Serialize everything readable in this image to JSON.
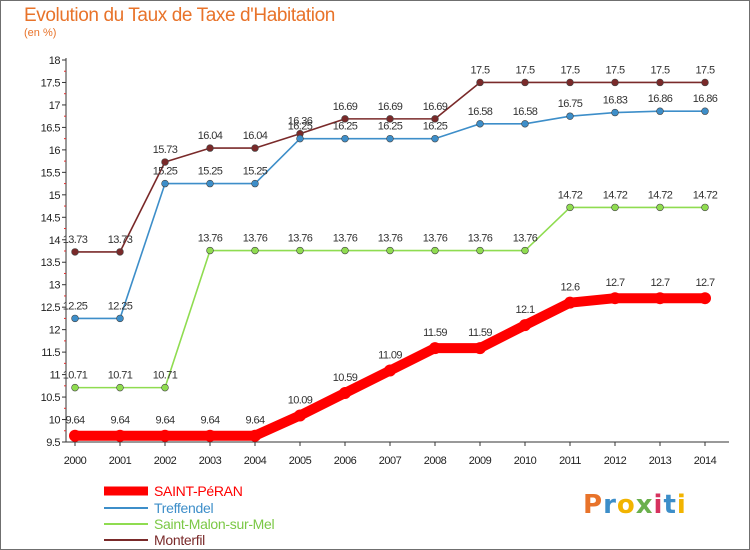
{
  "header": {
    "title": "Evolution du Taux de Taxe d'Habitation",
    "unit": "(en %)"
  },
  "logo": {
    "text": "Proxiti",
    "colors": [
      "#e8732a",
      "#3d8ec9",
      "#f2b400",
      "#6ab04c",
      "#d6325e",
      "#3d8ec9",
      "#f2b400"
    ]
  },
  "chart_data": {
    "type": "line",
    "title": "Evolution du Taux de Taxe d'Habitation",
    "subtitle": "(en %)",
    "xlabel": "",
    "ylabel": "",
    "categories": [
      "2000",
      "2001",
      "2002",
      "2003",
      "2004",
      "2005",
      "2006",
      "2007",
      "2008",
      "2009",
      "2010",
      "2011",
      "2012",
      "2013",
      "2014"
    ],
    "ylim": [
      9.5,
      18
    ],
    "yticks": [
      "9.5",
      "10",
      "10.5",
      "11",
      "11.5",
      "12",
      "12.5",
      "13",
      "13.5",
      "14",
      "14.5",
      "15",
      "15.5",
      "16",
      "16.5",
      "17",
      "17.5",
      "18"
    ],
    "grid": false,
    "legend": "bottom-left",
    "series": [
      {
        "name": "SAINT-PéRAN",
        "color": "#ff0000",
        "values": [
          9.64,
          9.64,
          9.64,
          9.64,
          9.64,
          10.09,
          10.59,
          11.09,
          11.59,
          11.59,
          12.1,
          12.6,
          12.7,
          12.7,
          12.7
        ],
        "labels": [
          "9.64",
          "9.64",
          "9.64",
          "9.64",
          "9.64",
          "10.09",
          "10.59",
          "11.09",
          "11.59",
          "11.59",
          "12.1",
          "12.6",
          "12.7",
          "12.7",
          "12.7"
        ]
      },
      {
        "name": "Treffendel",
        "color": "#3d8ec9",
        "values": [
          12.25,
          12.25,
          15.25,
          15.25,
          15.25,
          16.25,
          16.25,
          16.25,
          16.25,
          16.58,
          16.58,
          16.75,
          16.83,
          16.86,
          16.86
        ],
        "labels": [
          "12.25",
          "12.25",
          "15.25",
          "15.25",
          "15.25",
          "16.25",
          "16.25",
          "16.25",
          "16.25",
          "16.58",
          "16.58",
          "16.75",
          "16.83",
          "16.86",
          "16.86"
        ]
      },
      {
        "name": "Saint-Malon-sur-Mel",
        "color": "#8fdc50",
        "values": [
          10.71,
          10.71,
          10.71,
          13.76,
          13.76,
          13.76,
          13.76,
          13.76,
          13.76,
          13.76,
          13.76,
          14.72,
          14.72,
          14.72,
          14.72
        ],
        "labels": [
          "10.71",
          "10.71",
          "10.71",
          "13.76",
          "13.76",
          "13.76",
          "13.76",
          "13.76",
          "13.76",
          "13.76",
          "13.76",
          "14.72",
          "14.72",
          "14.72",
          "14.72"
        ]
      },
      {
        "name": "Monterfil",
        "color": "#7a2a2a",
        "values": [
          13.73,
          13.73,
          15.73,
          16.04,
          16.04,
          16.36,
          16.69,
          16.69,
          16.69,
          17.5,
          17.5,
          17.5,
          17.5,
          17.5,
          17.5
        ],
        "labels": [
          "13.73",
          "13.73",
          "15.73",
          "16.04",
          "16.04",
          "16.36",
          "16.69",
          "16.69",
          "16.69",
          "17.5",
          "17.5",
          "17.5",
          "17.5",
          "17.5",
          "17.5"
        ]
      }
    ]
  }
}
